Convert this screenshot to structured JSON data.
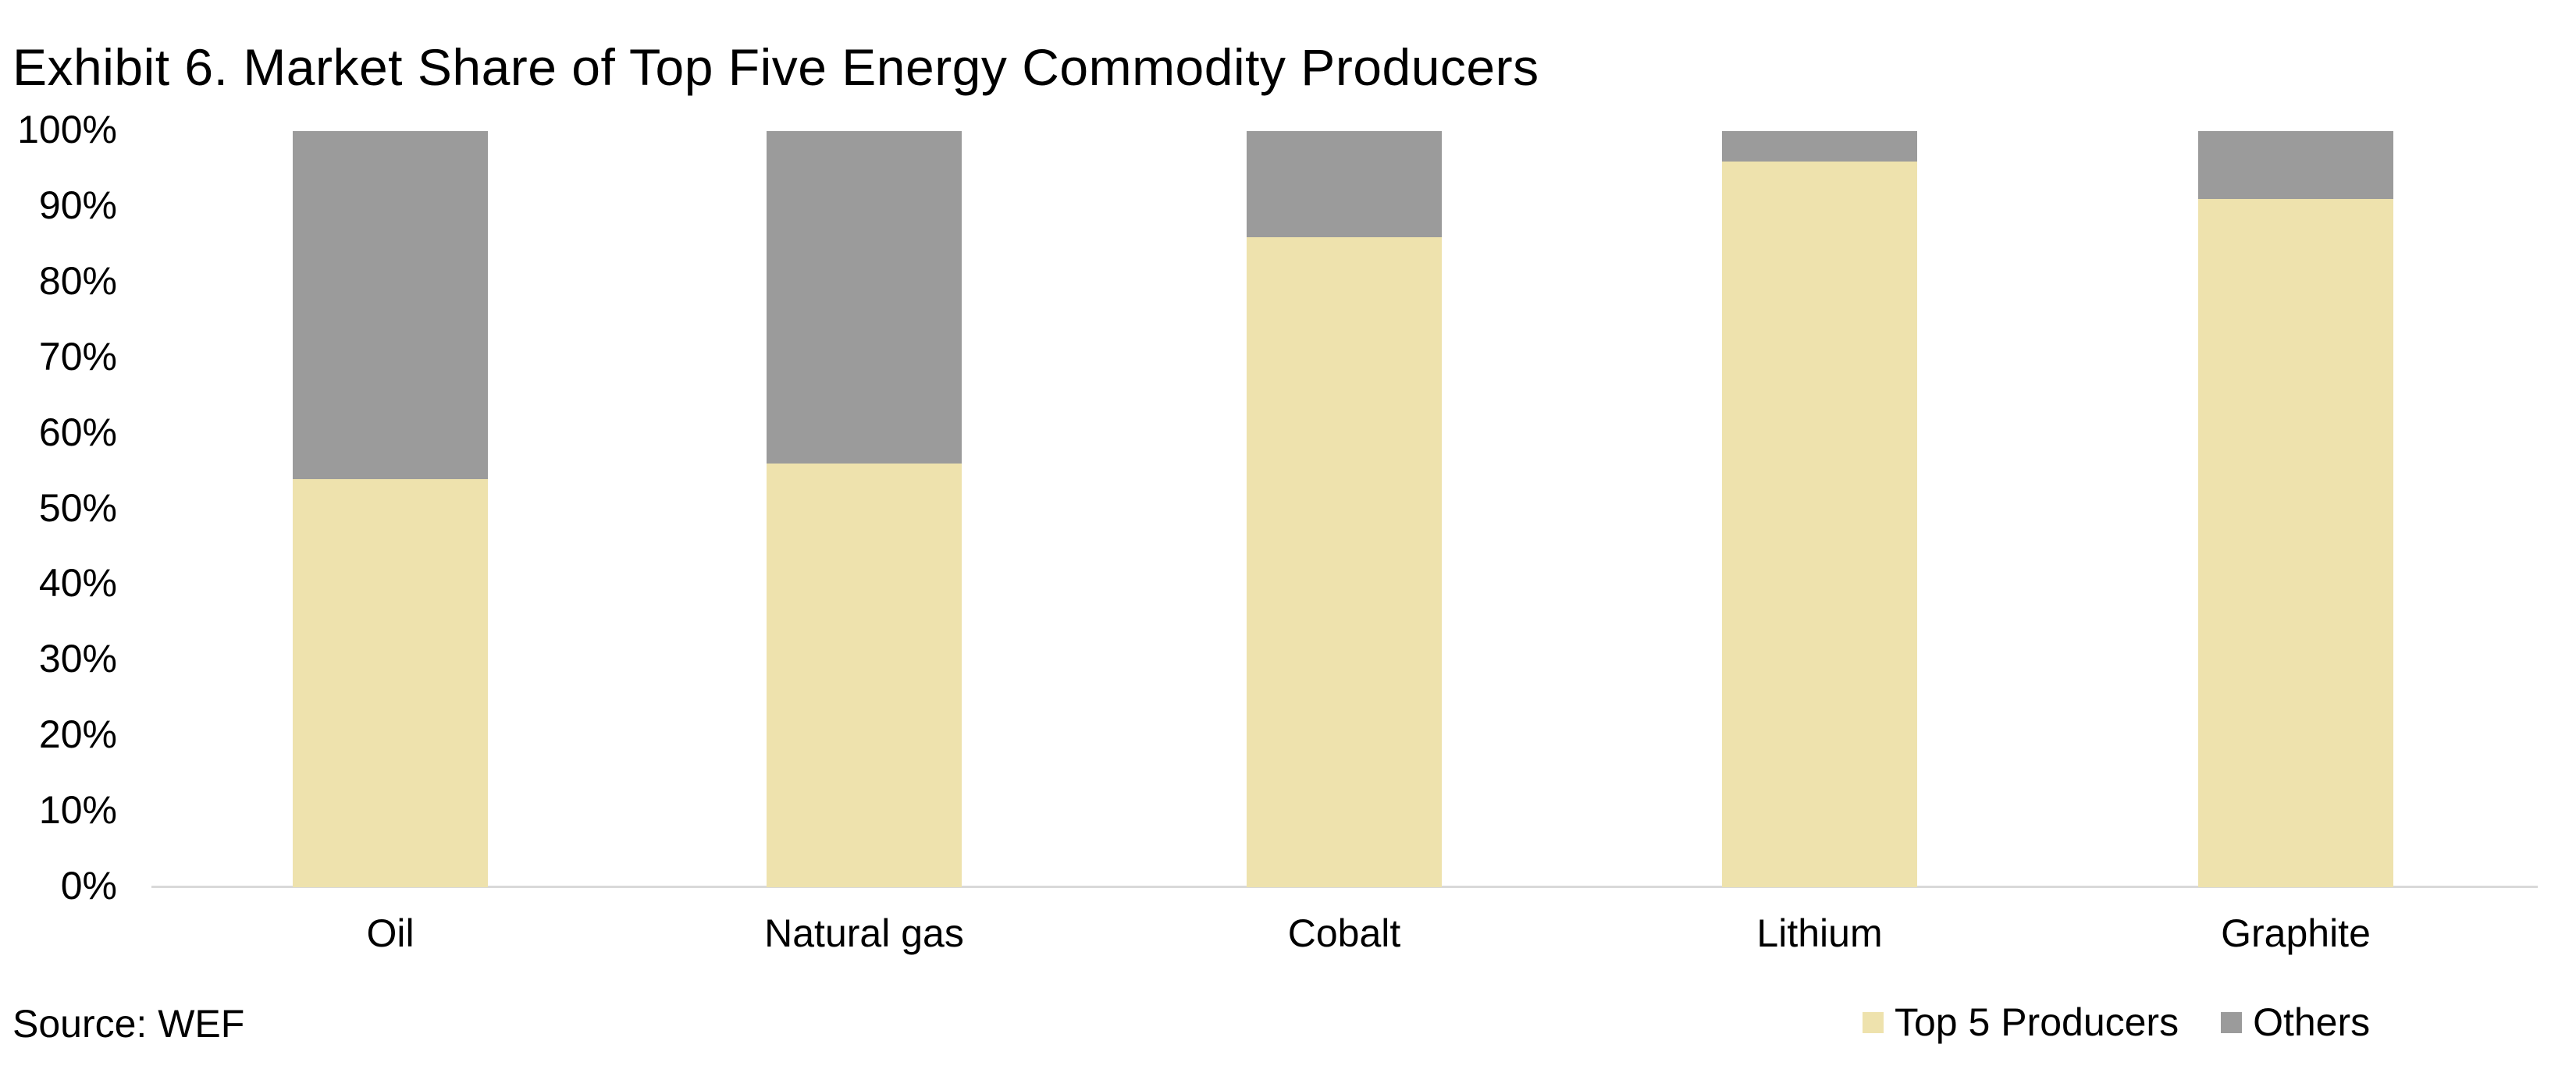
{
  "title": "Exhibit 6. Market Share of Top Five Energy Commodity Producers",
  "source_note": "Source: WEF",
  "y_axis": {
    "ticks": [
      "100%",
      "90%",
      "80%",
      "70%",
      "60%",
      "50%",
      "40%",
      "30%",
      "20%",
      "10%",
      "0%"
    ]
  },
  "legend": {
    "items": [
      {
        "label": "Top 5 Producers",
        "color": "#EEE2AD"
      },
      {
        "label": "Others",
        "color": "#9B9B9B"
      }
    ],
    "position": "bottom-right"
  },
  "colors": {
    "top5": "#EEE2AD",
    "others": "#9B9B9B",
    "axis_line": "#D9D9D9",
    "text": "#000000",
    "background": "#FFFFFF"
  },
  "chart_data": {
    "type": "bar",
    "stacked": true,
    "categories": [
      "Oil",
      "Natural gas",
      "Cobalt",
      "Lithium",
      "Graphite"
    ],
    "series": [
      {
        "name": "Top 5 Producers",
        "color": "#EEE2AD",
        "values": [
          54,
          56,
          86,
          96,
          91
        ]
      },
      {
        "name": "Others",
        "color": "#9B9B9B",
        "values": [
          46,
          44,
          14,
          4,
          9
        ]
      }
    ],
    "title": "Exhibit 6. Market Share of Top Five Energy Commodity Producers",
    "xlabel": "",
    "ylabel": "",
    "ylim": [
      0,
      100
    ],
    "y_tick_step": 10,
    "y_tick_format": "percent",
    "grid": false,
    "legend_position": "bottom-right"
  }
}
